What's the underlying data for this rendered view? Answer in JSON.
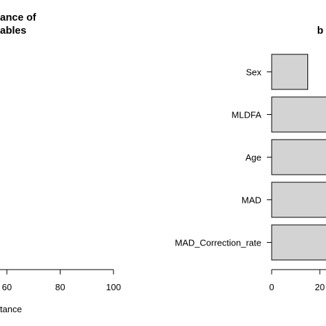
{
  "chart_data": [
    {
      "type": "bar",
      "orientation": "horizontal",
      "title_lines": [
        "ance of",
        "ables"
      ],
      "xlabel": "tance",
      "xticks": [
        60,
        80,
        100
      ],
      "xlim": [
        0,
        100
      ],
      "categories": [],
      "values": []
    },
    {
      "type": "bar",
      "orientation": "horizontal",
      "title_lines": [
        "b"
      ],
      "xlabel": "",
      "xticks": [
        0,
        20
      ],
      "xlim": [
        0,
        100
      ],
      "categories": [
        "Sex",
        "MLDFA",
        "Age",
        "MAD",
        "MAD_Correction_rate"
      ],
      "values": [
        15,
        100,
        100,
        100,
        100
      ]
    }
  ],
  "colors": {
    "bar_fill": "#d3d3d3",
    "bar_stroke": "#000000"
  }
}
